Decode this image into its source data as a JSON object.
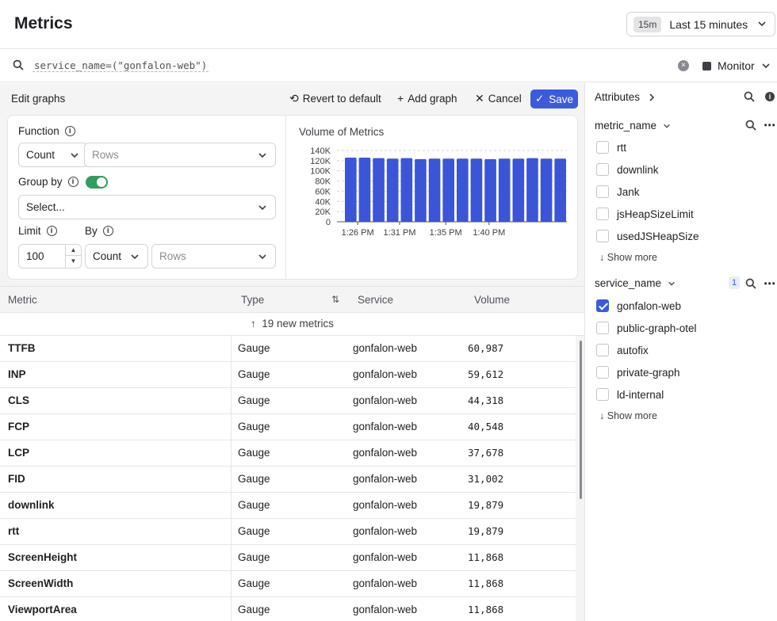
{
  "header": {
    "title": "Metrics",
    "time_pill": "15m",
    "time_label": "Last 15 minutes"
  },
  "search": {
    "query": "service_name=(\"gonfalon-web\")",
    "monitor_label": "Monitor"
  },
  "editor": {
    "title": "Edit graphs",
    "revert_label": "Revert to default",
    "add_label": "Add graph",
    "cancel_label": "Cancel",
    "save_label": "Save",
    "function_label": "Function",
    "function_value": "Count",
    "function_field_placeholder": "Rows",
    "group_by_label": "Group by",
    "group_by_placeholder": "Select...",
    "limit_label": "Limit",
    "limit_value": "100",
    "by_label": "By",
    "by_value": "Count",
    "by_field_placeholder": "Rows"
  },
  "chart_data": {
    "type": "bar",
    "title": "Volume of Metrics",
    "xlabel": "",
    "ylabel": "",
    "ylim": [
      0,
      140000
    ],
    "yticks": [
      "140K",
      "120K",
      "100K",
      "80K",
      "60K",
      "40K",
      "20K",
      "0"
    ],
    "xticks": [
      "1:26 PM",
      "1:31 PM",
      "1:35 PM",
      "1:40 PM"
    ],
    "values": [
      126000,
      126000,
      125000,
      124000,
      125000,
      123000,
      124000,
      124000,
      124000,
      124000,
      123000,
      124000,
      124000,
      125000,
      124000,
      124000
    ],
    "grid": true,
    "color": "#3b55d9"
  },
  "table": {
    "columns": [
      "Metric",
      "Type",
      "Service",
      "Volume"
    ],
    "new_metrics_label": "19 new metrics",
    "rows": [
      {
        "metric": "TTFB",
        "type": "Gauge",
        "service": "gonfalon-web",
        "volume": "60,987"
      },
      {
        "metric": "INP",
        "type": "Gauge",
        "service": "gonfalon-web",
        "volume": "59,612"
      },
      {
        "metric": "CLS",
        "type": "Gauge",
        "service": "gonfalon-web",
        "volume": "44,318"
      },
      {
        "metric": "FCP",
        "type": "Gauge",
        "service": "gonfalon-web",
        "volume": "40,548"
      },
      {
        "metric": "LCP",
        "type": "Gauge",
        "service": "gonfalon-web",
        "volume": "37,678"
      },
      {
        "metric": "FID",
        "type": "Gauge",
        "service": "gonfalon-web",
        "volume": "31,002"
      },
      {
        "metric": "downlink",
        "type": "Gauge",
        "service": "gonfalon-web",
        "volume": "19,879"
      },
      {
        "metric": "rtt",
        "type": "Gauge",
        "service": "gonfalon-web",
        "volume": "19,879"
      },
      {
        "metric": "ScreenHeight",
        "type": "Gauge",
        "service": "gonfalon-web",
        "volume": "11,868"
      },
      {
        "metric": "ScreenWidth",
        "type": "Gauge",
        "service": "gonfalon-web",
        "volume": "11,868"
      },
      {
        "metric": "ViewportArea",
        "type": "Gauge",
        "service": "gonfalon-web",
        "volume": "11,868"
      }
    ]
  },
  "attributes": {
    "title": "Attributes",
    "show_more_label": "Show more",
    "metric_name": {
      "label": "metric_name",
      "items": [
        {
          "label": "rtt",
          "checked": false
        },
        {
          "label": "downlink",
          "checked": false
        },
        {
          "label": "Jank",
          "checked": false
        },
        {
          "label": "jsHeapSizeLimit",
          "checked": false
        },
        {
          "label": "usedJSHeapSize",
          "checked": false
        }
      ]
    },
    "service_name": {
      "label": "service_name",
      "count": "1",
      "items": [
        {
          "label": "gonfalon-web",
          "checked": true
        },
        {
          "label": "public-graph-otel",
          "checked": false
        },
        {
          "label": "autofix",
          "checked": false
        },
        {
          "label": "private-graph",
          "checked": false
        },
        {
          "label": "ld-internal",
          "checked": false
        }
      ]
    }
  },
  "colors": {
    "accent": "#3b5bdb",
    "toggle_on": "#2f9e5e",
    "bar": "#3b55d9"
  }
}
